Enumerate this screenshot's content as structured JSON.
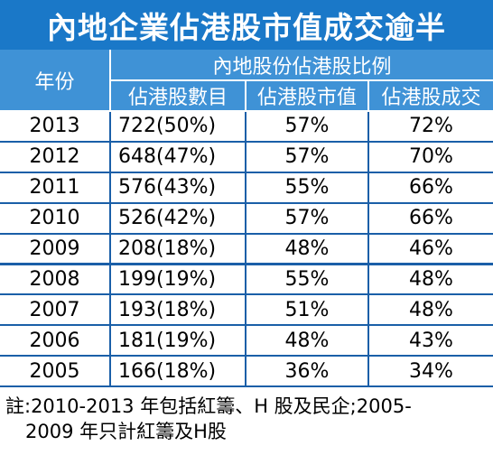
{
  "title": "內地企業佔港股市值成交逾半",
  "header": {
    "year": "年份",
    "group": "內地股份佔港股比例",
    "count": "佔港股數目",
    "mcap": "佔港股市值",
    "turnover": "佔港股成交"
  },
  "chart_data": {
    "type": "table",
    "title": "內地企業佔港股市值成交逾半",
    "columns": [
      "年份",
      "佔港股數目",
      "佔港股市值",
      "佔港股成交"
    ],
    "rows": [
      {
        "year": "2013",
        "count": "722(50%)",
        "mcap": "57%",
        "turnover": "72%"
      },
      {
        "year": "2012",
        "count": "648(47%)",
        "mcap": "57%",
        "turnover": "70%"
      },
      {
        "year": "2011",
        "count": "576(43%)",
        "mcap": "55%",
        "turnover": "66%"
      },
      {
        "year": "2010",
        "count": "526(42%)",
        "mcap": "57%",
        "turnover": "66%"
      },
      {
        "year": "2009",
        "count": "208(18%)",
        "mcap": "48%",
        "turnover": "46%"
      },
      {
        "year": "2008",
        "count": "199(19%)",
        "mcap": "55%",
        "turnover": "48%"
      },
      {
        "year": "2007",
        "count": "193(18%)",
        "mcap": "51%",
        "turnover": "48%"
      },
      {
        "year": "2006",
        "count": "181(19%)",
        "mcap": "48%",
        "turnover": "43%"
      },
      {
        "year": "2005",
        "count": "166(18%)",
        "mcap": "36%",
        "turnover": "34%"
      }
    ]
  },
  "note": {
    "line1": "註:2010-2013 年包括紅籌、H 股及民企;2005-",
    "line2": "2009 年只計紅籌及H股"
  },
  "colors": {
    "title_bg": "#1a78c8",
    "header_bg": "#3f92d6",
    "grid": "#1a5fa8"
  }
}
